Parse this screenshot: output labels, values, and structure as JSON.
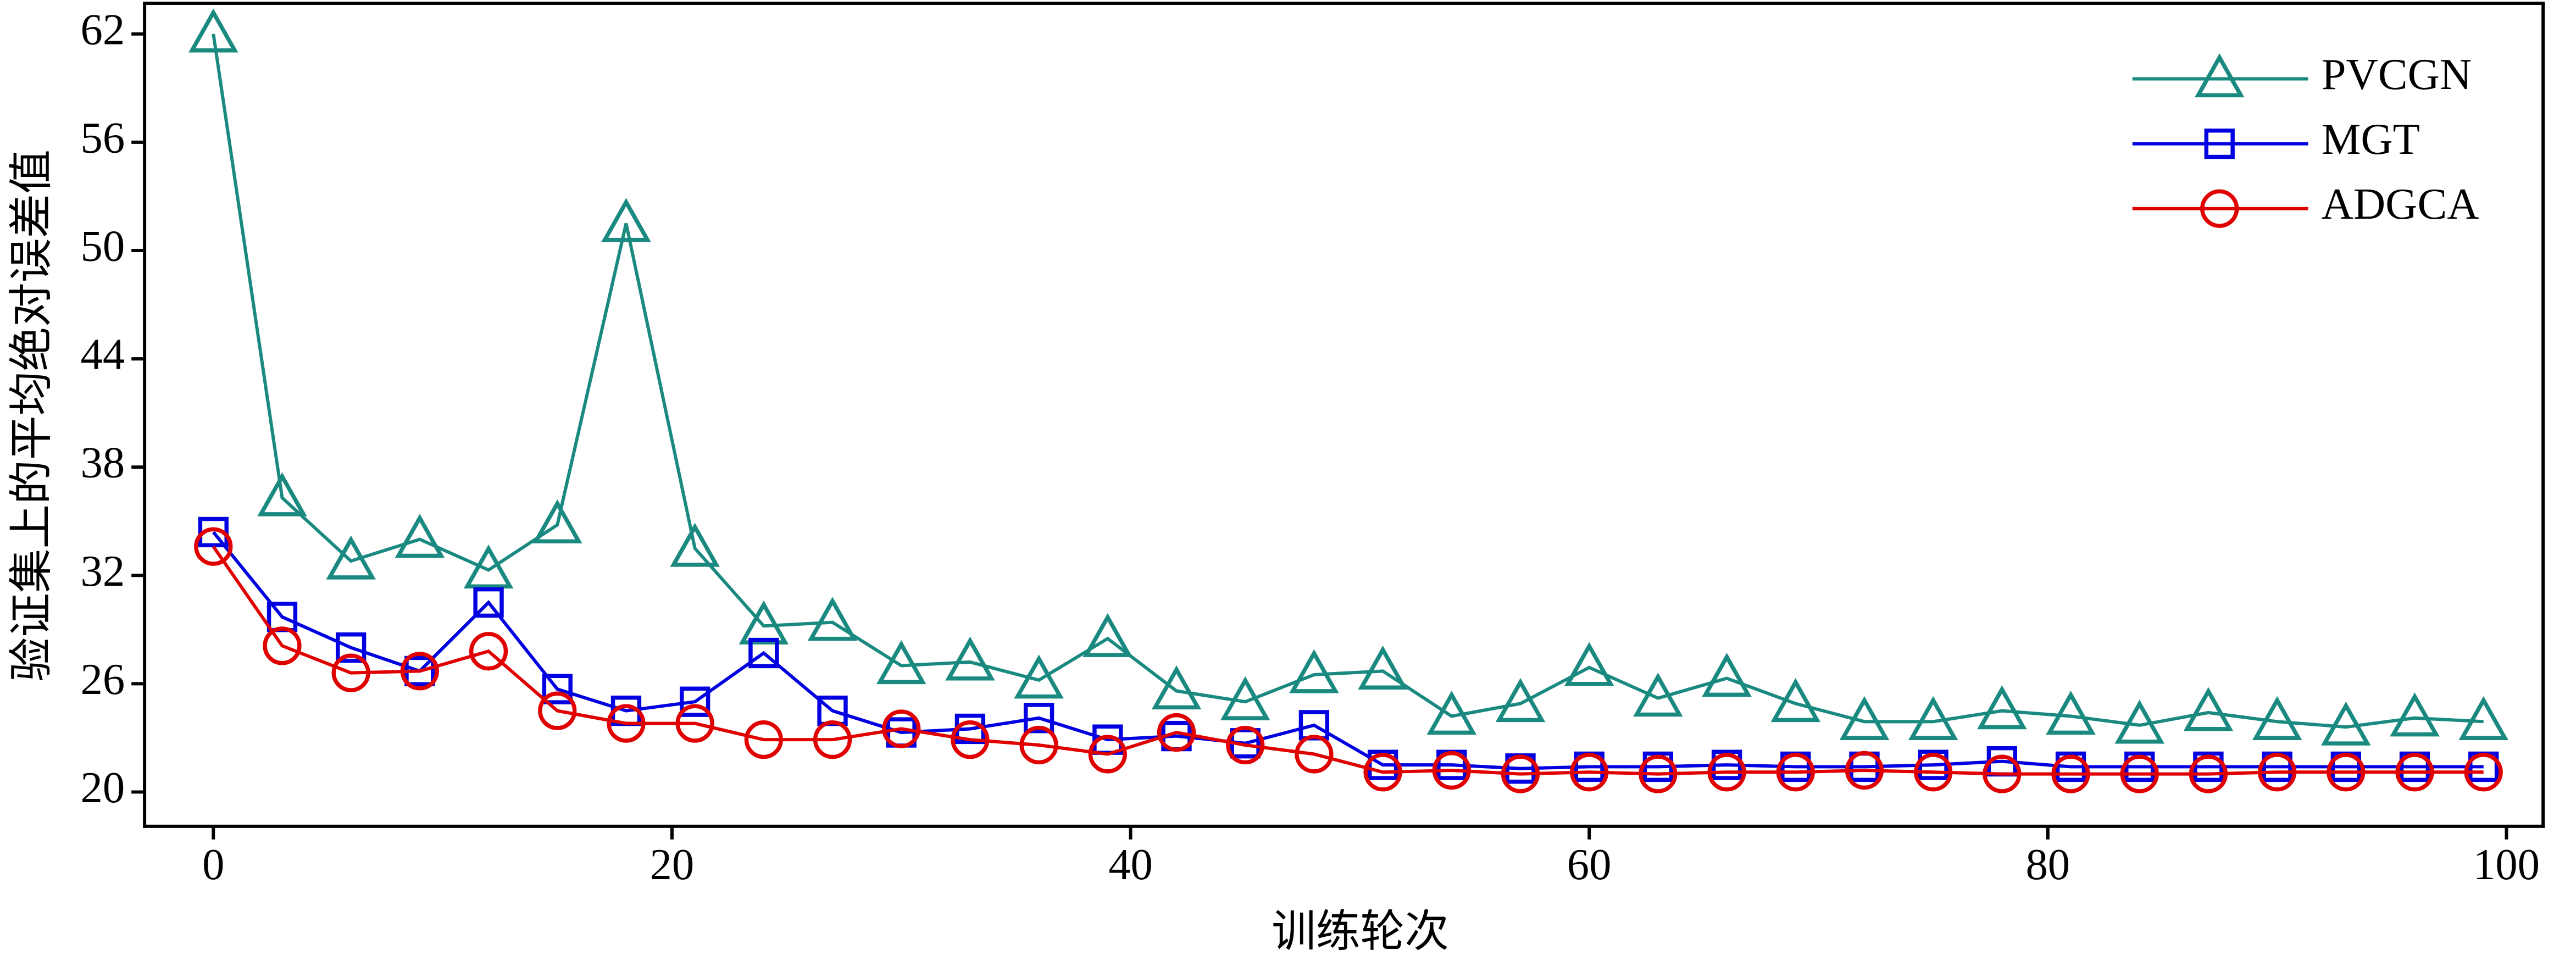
{
  "chart_data": {
    "type": "line",
    "x_label": "训练轮次",
    "y_label": "验证集上的平均绝对误差值",
    "x": [
      0,
      3,
      6,
      9,
      12,
      15,
      18,
      21,
      24,
      27,
      30,
      33,
      36,
      39,
      42,
      45,
      48,
      51,
      54,
      57,
      60,
      63,
      66,
      69,
      72,
      75,
      78,
      81,
      84,
      87,
      90,
      93,
      96,
      99
    ],
    "series": [
      {
        "name": "PVCGN",
        "color": "#1a8a80",
        "marker": "triangle",
        "values": [
          62,
          36.3,
          32.8,
          34.0,
          32.3,
          34.8,
          51.5,
          33.5,
          29.2,
          29.4,
          27.0,
          27.2,
          26.2,
          28.5,
          25.6,
          25.0,
          26.5,
          26.7,
          24.2,
          24.9,
          26.9,
          25.2,
          26.3,
          24.9,
          23.9,
          23.9,
          24.5,
          24.2,
          23.7,
          24.4,
          23.9,
          23.6,
          24.1,
          23.9
        ]
      },
      {
        "name": "MGT",
        "color": "#0000e0",
        "marker": "square",
        "values": [
          34.4,
          29.7,
          28.0,
          26.7,
          30.5,
          25.7,
          24.5,
          25.0,
          27.7,
          24.5,
          23.3,
          23.5,
          24.1,
          22.9,
          23.1,
          22.7,
          23.7,
          21.5,
          21.5,
          21.3,
          21.4,
          21.4,
          21.5,
          21.4,
          21.4,
          21.5,
          21.7,
          21.4,
          21.4,
          21.4,
          21.4,
          21.4,
          21.4,
          21.4
        ]
      },
      {
        "name": "ADGCA",
        "color": "#e00000",
        "marker": "circle",
        "values": [
          33.6,
          28.1,
          26.6,
          26.7,
          27.8,
          24.5,
          23.8,
          23.8,
          22.9,
          22.9,
          23.5,
          22.9,
          22.6,
          22.1,
          23.3,
          22.6,
          22.1,
          21.1,
          21.2,
          21.0,
          21.1,
          21.0,
          21.1,
          21.1,
          21.2,
          21.1,
          21.0,
          21.0,
          21.0,
          21.0,
          21.1,
          21.1,
          21.1,
          21.1
        ]
      }
    ],
    "xlim": [
      -3,
      101.6
    ],
    "xticks": [
      0,
      20,
      40,
      60,
      80,
      100
    ],
    "ylim": [
      18.1,
      63.7
    ],
    "yticks": [
      20,
      26,
      32,
      38,
      44,
      50,
      56,
      62
    ],
    "grid": false,
    "legend": "upper right"
  }
}
